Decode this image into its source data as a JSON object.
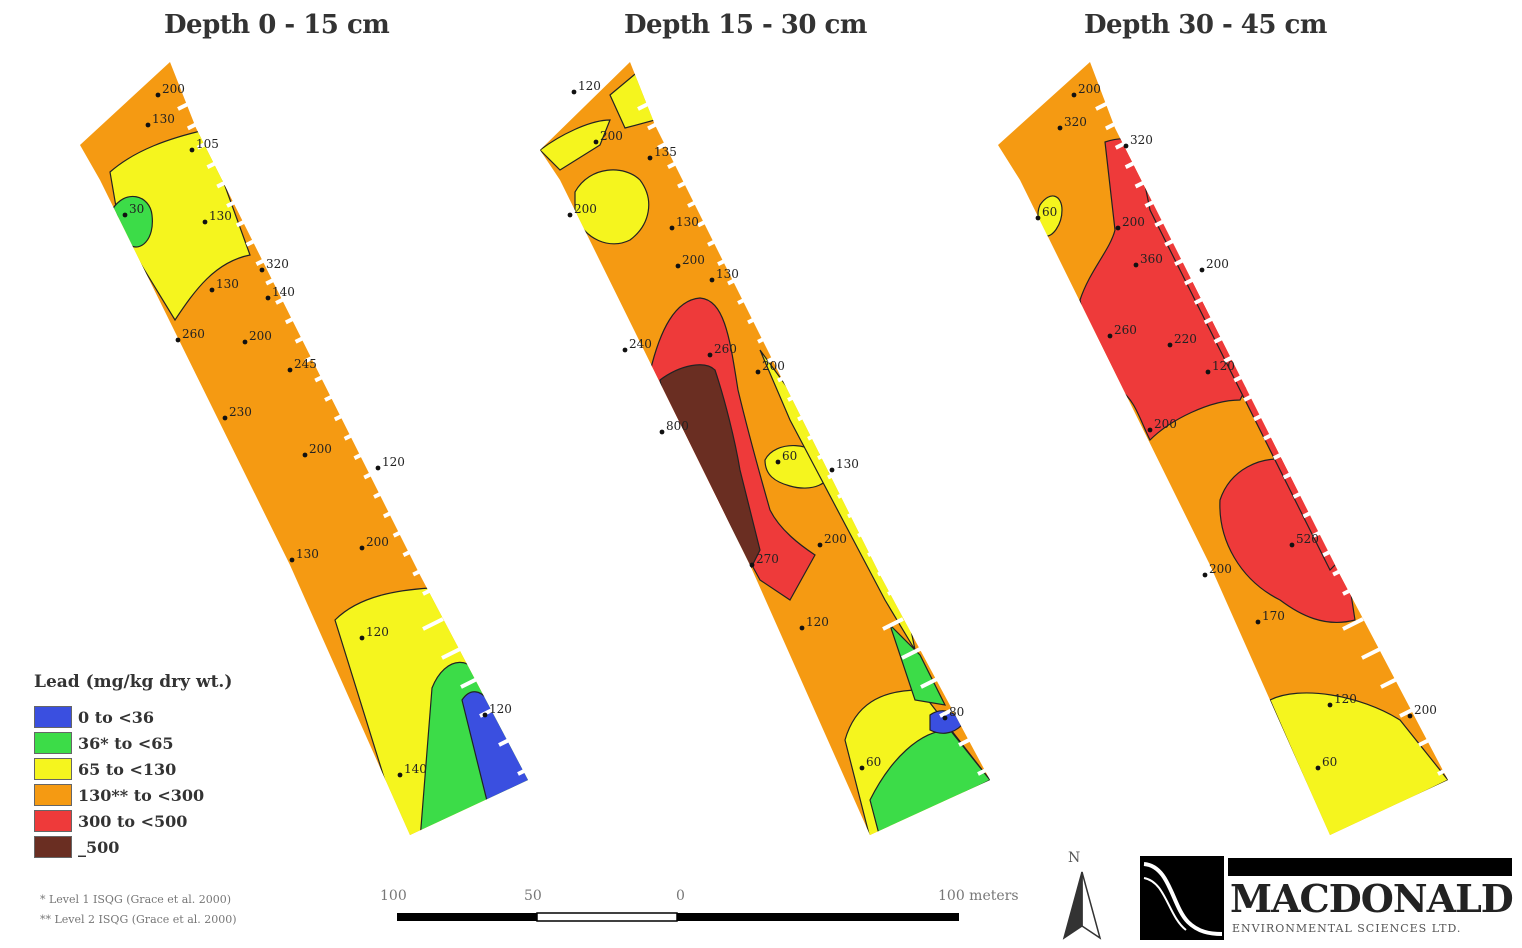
{
  "panels": [
    {
      "title": "Depth 0 - 15 cm"
    },
    {
      "title": "Depth 15 - 30 cm"
    },
    {
      "title": "Depth 30 - 45 cm"
    }
  ],
  "legend": {
    "title": "Lead (mg/kg dry wt.)",
    "items": [
      {
        "label": "0 to <36",
        "color": "#3a4fe0"
      },
      {
        "label": "36* to <65",
        "color": "#3cdc48"
      },
      {
        "label": "65 to <130",
        "color": "#f5f51e"
      },
      {
        "label": "130** to <300",
        "color": "#f59a12"
      },
      {
        "label": "300 to <500",
        "color": "#ee3a3a"
      },
      {
        "label": "_500",
        "color": "#6a2e22"
      }
    ]
  },
  "footnotes": {
    "one": "* Level 1 ISQG (Grace et al. 2000)",
    "two": "** Level 2 ISQG (Grace et al. 2000)"
  },
  "scale_bar": {
    "labels": [
      "100",
      "50",
      "0",
      "100 meters"
    ]
  },
  "north_arrow": {
    "letter": "N"
  },
  "logo": {
    "name": "MACDONALD",
    "subtitle": "ENVIRONMENTAL SCIENCES LTD."
  },
  "sample_labels": {
    "panel1": [
      "200",
      "130",
      "105",
      "30",
      "130",
      "320",
      "130",
      "140",
      "260",
      "200",
      "245",
      "230",
      "200",
      "120",
      "130",
      "200",
      "120",
      "140",
      "120"
    ],
    "panel2": [
      "120",
      "200",
      "135",
      "200",
      "130",
      "200",
      "130",
      "240",
      "260",
      "200",
      "800",
      "60",
      "130",
      "200",
      "270",
      "120",
      "60",
      "80"
    ],
    "panel3": [
      "200",
      "320",
      "320",
      "60",
      "200",
      "260",
      "360",
      "200",
      "220",
      "120",
      "200",
      "520",
      "200",
      "170",
      "120",
      "200",
      "60"
    ]
  }
}
